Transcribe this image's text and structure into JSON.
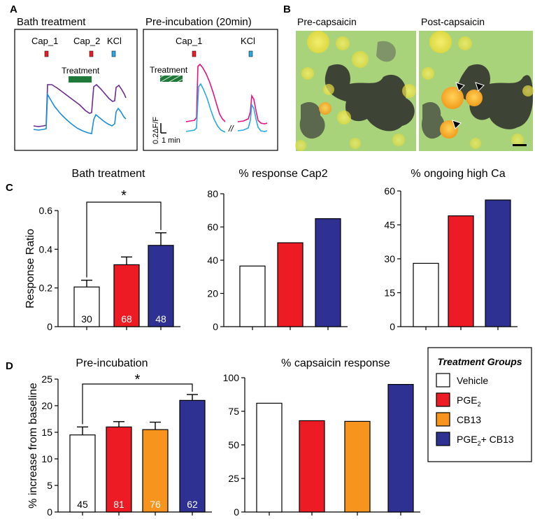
{
  "panel_labels": {
    "a": "A",
    "b": "B",
    "c": "C",
    "d": "D"
  },
  "panel_a": {
    "bath_title": "Bath treatment",
    "preinc_title": "Pre-incubation (20min)",
    "cap1": "Cap_1",
    "cap2": "Cap_2",
    "kcl": "KCl",
    "treatment": "Treatment",
    "scale_y": "0.2ΔF/F",
    "scale_x": "1 min",
    "break": "//"
  },
  "panel_b": {
    "pre": "Pre-capsaicin",
    "post": "Post-capsaicin"
  },
  "legend": {
    "title": "Treatment Groups",
    "vehicle": "Vehicle",
    "pge2": "PGE",
    "pge2_sub": "2",
    "cb13": "CB13",
    "combo_prefix": "PGE",
    "combo_sub": "2",
    "combo_suffix": "+ CB13"
  },
  "colors": {
    "vehicle": "#ffffff",
    "pge2": "#ed1c24",
    "cb13": "#f7941d",
    "combo": "#2e3192",
    "purple": "#6a2c91",
    "blue": "#1b8fd6",
    "magenta": "#e5147f",
    "cyan": "#29abe2",
    "green": "#1f7a3a"
  },
  "chart_data": [
    {
      "id": "c1",
      "type": "bar",
      "title": "Bath treatment",
      "ylabel": "Response Ratio",
      "xlabel": "",
      "ylim": [
        0,
        0.6
      ],
      "yticks": [
        "0",
        "0.2",
        "0.4",
        "0.6"
      ],
      "yticks_val": [
        0,
        0.2,
        0.4,
        0.6
      ],
      "categories": [
        "Vehicle",
        "PGE2",
        "PGE2+ CB13"
      ],
      "values": [
        0.205,
        0.32,
        0.42
      ],
      "errors": [
        0.035,
        0.04,
        0.065
      ],
      "n_labels": [
        "30",
        "68",
        "48"
      ],
      "significance": "*"
    },
    {
      "id": "c2",
      "type": "bar",
      "title": "% response Cap2",
      "ylim": [
        0,
        80
      ],
      "yticks": [
        "0",
        "20",
        "40",
        "60",
        "80"
      ],
      "yticks_val": [
        0,
        20,
        40,
        60,
        80
      ],
      "categories": [
        "Vehicle",
        "PGE2",
        "PGE2+ CB13"
      ],
      "values": [
        36.5,
        50.5,
        65
      ]
    },
    {
      "id": "c3",
      "type": "bar",
      "title": "% ongoing high Ca",
      "ylim": [
        0,
        60
      ],
      "yticks": [
        "0",
        "15",
        "30",
        "45",
        "60"
      ],
      "yticks_val": [
        0,
        15,
        30,
        45,
        60
      ],
      "categories": [
        "Vehicle",
        "PGE2",
        "PGE2+ CB13"
      ],
      "values": [
        28,
        49,
        56
      ]
    },
    {
      "id": "d1",
      "type": "bar",
      "title": "Pre-incubation",
      "ylabel": "% increase from baseline",
      "ylim": [
        0,
        25
      ],
      "yticks": [
        "0",
        "5",
        "10",
        "15",
        "20",
        "25"
      ],
      "yticks_val": [
        0,
        5,
        10,
        15,
        20,
        25
      ],
      "categories": [
        "Vehicle",
        "PGE2",
        "CB13",
        "PGE2+ CB13"
      ],
      "values": [
        14.5,
        16,
        15.5,
        21
      ],
      "errors": [
        1.5,
        1.0,
        1.4,
        1.1
      ],
      "n_labels": [
        "45",
        "81",
        "76",
        "62"
      ],
      "significance": "*"
    },
    {
      "id": "d2",
      "type": "bar",
      "title": "% capsaicin response",
      "ylim": [
        0,
        100
      ],
      "yticks": [
        "0",
        "25",
        "50",
        "75",
        "100"
      ],
      "yticks_val": [
        0,
        25,
        50,
        75,
        100
      ],
      "categories": [
        "Vehicle",
        "PGE2",
        "CB13",
        "PGE2+ CB13"
      ],
      "values": [
        81,
        68,
        67.5,
        95
      ]
    }
  ]
}
